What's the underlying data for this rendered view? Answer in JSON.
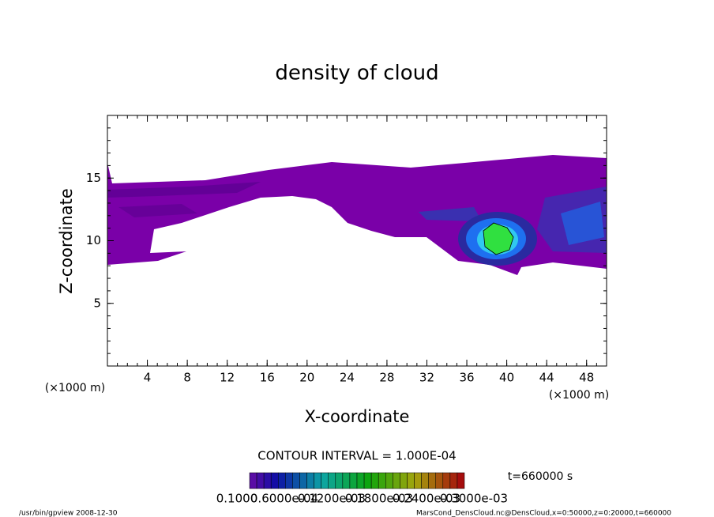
{
  "chart_data": {
    "type": "contour",
    "title": "density of cloud",
    "x_label": "X-coordinate",
    "y_label": "Z-coordinate",
    "x_unit": "(×1000 m)",
    "x_unit_right": "(×1000 m)",
    "xlim": [
      0,
      50
    ],
    "xticks": [
      4,
      8,
      12,
      16,
      20,
      24,
      28,
      32,
      36,
      40,
      44,
      48
    ],
    "ylim": [
      0,
      20
    ],
    "yticks": [
      5,
      10,
      15
    ],
    "contour_interval": "CONTOUR INTERVAL = 1.000E-04",
    "time_label": "t=660000 s",
    "colorbar_labels": [
      "0.1000",
      "0.6000e-04",
      "0.1200e-03",
      "0.1800e-03",
      "0.2400e-03",
      "0.3000e-03"
    ],
    "footer_left": "/usr/bin/gpview   2008-12-30",
    "footer_right": "MarsCond_DensCloud.nc@DensCloud,x=0:50000,z=0:20000,t=660000"
  }
}
